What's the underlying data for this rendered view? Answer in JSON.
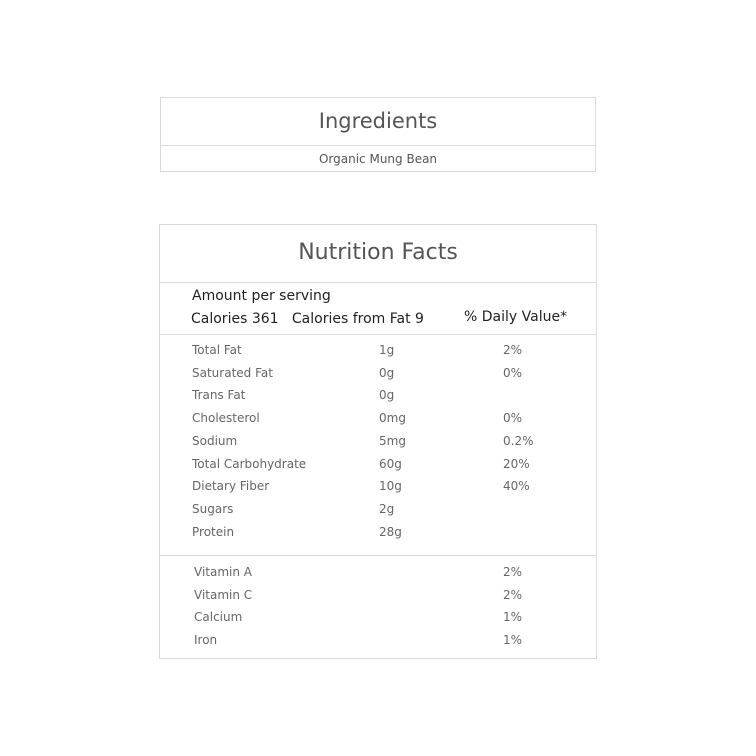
{
  "ingredients": {
    "title": "Ingredients",
    "value": "Organic Mung Bean"
  },
  "nutrition": {
    "title": "Nutrition Facts",
    "amount_per_serving": "Amount per serving",
    "calories": "Calories 361   Calories from Fat 9",
    "daily_value_header": "% Daily Value*",
    "nutrients": [
      {
        "name": "Total Fat",
        "amount": "1g",
        "dv": "2%"
      },
      {
        "name": "Saturated Fat",
        "amount": "0g",
        "dv": "0%"
      },
      {
        "name": "Trans Fat",
        "amount": "0g",
        "dv": ""
      },
      {
        "name": "Cholesterol",
        "amount": "0mg",
        "dv": "0%"
      },
      {
        "name": "Sodium",
        "amount": "5mg",
        "dv": "0.2%"
      },
      {
        "name": "Total Carbohydrate",
        "amount": "60g",
        "dv": "20%"
      },
      {
        "name": "Dietary Fiber",
        "amount": "10g",
        "dv": "40%"
      },
      {
        "name": "Sugars",
        "amount": "2g",
        "dv": ""
      },
      {
        "name": "Protein",
        "amount": "28g",
        "dv": ""
      }
    ],
    "vitamins": [
      {
        "name": "Vitamin A",
        "dv": "2%"
      },
      {
        "name": "Vitamin C",
        "dv": "2%"
      },
      {
        "name": "Calcium",
        "dv": "1%"
      },
      {
        "name": "Iron",
        "dv": "1%"
      }
    ]
  }
}
